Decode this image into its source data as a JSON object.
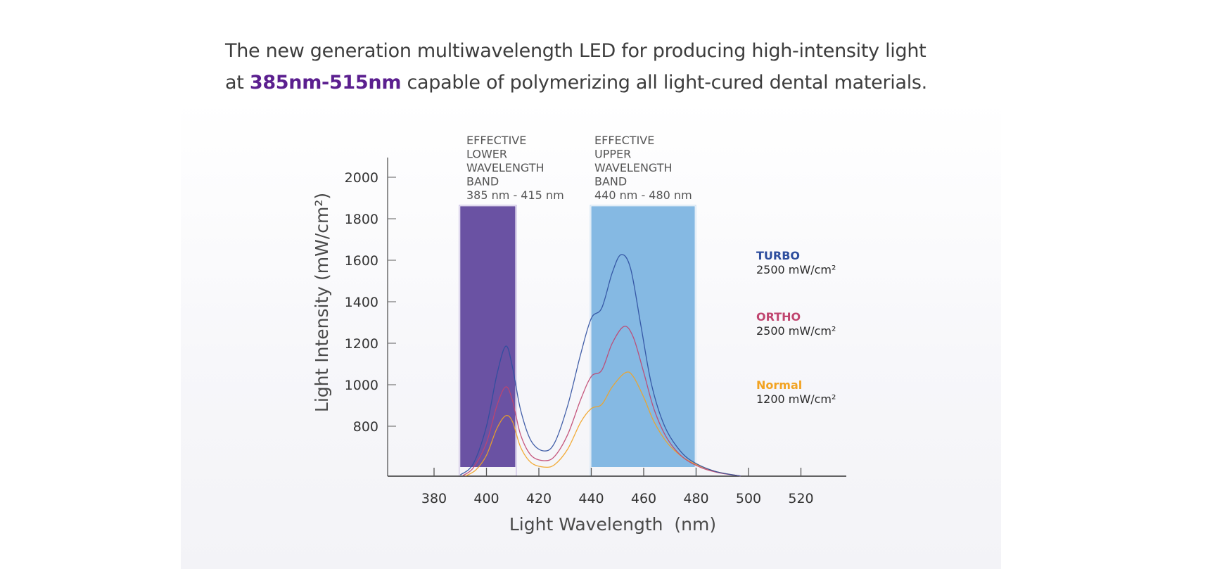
{
  "headline": {
    "line1": "The new generation multiwavelength LED for producing high-intensity light",
    "line2_prefix": "at ",
    "line2_highlight": "385nm-515nm",
    "line2_suffix": " capable of polymerizing all light-cured dental materials.",
    "highlight_color": "#5b1f8f"
  },
  "chart_data": {
    "type": "line",
    "title": "",
    "xlabel": "Light Wavelength  (nm)",
    "ylabel": "Light Intensity (mW/cm²)",
    "xlim": [
      360,
      535
    ],
    "ylim": [
      560,
      2100
    ],
    "x_ticks": [
      380,
      400,
      420,
      440,
      460,
      480,
      500,
      520
    ],
    "y_ticks": [
      800,
      1000,
      1200,
      1400,
      1600,
      1800,
      2000
    ],
    "grid": false,
    "bands": [
      {
        "name": "lower",
        "label_lines": [
          "EFFECTIVE",
          "LOWER",
          "WAVELENGTH",
          "BAND",
          "385 nm - 415 nm"
        ],
        "x_range": [
          390,
          411
        ],
        "y_top": 1860,
        "color": "#6a52a3"
      },
      {
        "name": "upper",
        "label_lines": [
          "EFFECTIVE",
          "UPPER",
          "WAVELENGTH",
          "BAND",
          "440 nm - 480 nm"
        ],
        "x_range": [
          440,
          479.5
        ],
        "y_top": 1860,
        "color": "#85b9e3"
      }
    ],
    "series": [
      {
        "name": "TURBO",
        "legend_value": "2500 mW/cm²",
        "color": "#2e4e9e",
        "points": [
          [
            390,
            565
          ],
          [
            395,
            620
          ],
          [
            400,
            800
          ],
          [
            404,
            1050
          ],
          [
            407.4,
            1186
          ],
          [
            410,
            1080
          ],
          [
            413,
            880
          ],
          [
            417,
            730
          ],
          [
            421.9,
            681
          ],
          [
            426,
            720
          ],
          [
            431,
            900
          ],
          [
            436,
            1150
          ],
          [
            440,
            1320
          ],
          [
            444,
            1370
          ],
          [
            448,
            1540
          ],
          [
            451.4,
            1627
          ],
          [
            455,
            1560
          ],
          [
            459,
            1280
          ],
          [
            463,
            1000
          ],
          [
            468,
            800
          ],
          [
            474,
            680
          ],
          [
            480,
            620
          ],
          [
            488,
            580
          ],
          [
            497,
            560
          ]
        ]
      },
      {
        "name": "ORTHO",
        "legend_value": "2500 mW/cm²",
        "color": "#c0456f",
        "points": [
          [
            391,
            562
          ],
          [
            395,
            600
          ],
          [
            400,
            720
          ],
          [
            404,
            900
          ],
          [
            407.4,
            990
          ],
          [
            410,
            920
          ],
          [
            413,
            760
          ],
          [
            417,
            660
          ],
          [
            421.9,
            634
          ],
          [
            426,
            655
          ],
          [
            431,
            760
          ],
          [
            436,
            930
          ],
          [
            440,
            1040
          ],
          [
            444,
            1070
          ],
          [
            448,
            1200
          ],
          [
            452.5,
            1281
          ],
          [
            456,
            1230
          ],
          [
            460,
            1060
          ],
          [
            464,
            880
          ],
          [
            469,
            740
          ],
          [
            475,
            650
          ],
          [
            482,
            600
          ],
          [
            489,
            575
          ],
          [
            497,
            560
          ]
        ]
      },
      {
        "name": "Normal",
        "legend_value": "1200 mW/cm²",
        "color": "#f2a322",
        "points": [
          [
            392,
            560
          ],
          [
            396,
            590
          ],
          [
            400,
            660
          ],
          [
            404,
            790
          ],
          [
            407.4,
            851
          ],
          [
            410,
            820
          ],
          [
            413,
            700
          ],
          [
            417,
            625
          ],
          [
            421.9,
            603
          ],
          [
            426,
            615
          ],
          [
            431,
            690
          ],
          [
            436,
            820
          ],
          [
            440,
            885
          ],
          [
            444,
            905
          ],
          [
            448,
            990
          ],
          [
            453,
            1058
          ],
          [
            456,
            1040
          ],
          [
            460,
            940
          ],
          [
            464,
            820
          ],
          [
            469,
            720
          ],
          [
            475,
            650
          ],
          [
            482,
            605
          ],
          [
            489,
            577
          ],
          [
            497,
            560
          ]
        ]
      }
    ]
  }
}
